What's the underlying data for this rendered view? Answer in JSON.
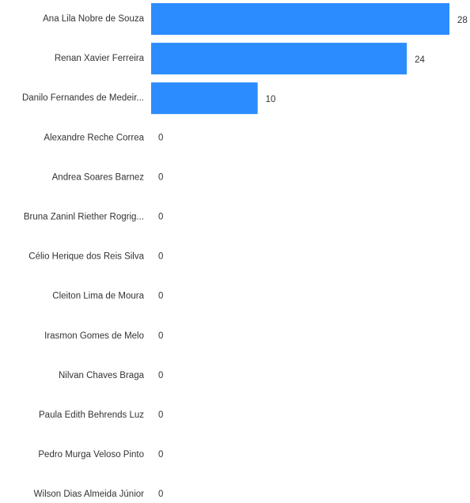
{
  "chart_data": {
    "type": "bar",
    "orientation": "horizontal",
    "categories": [
      "Ana Lila Nobre de Souza",
      "Renan Xavier Ferreira",
      "Danilo Fernandes de Medeir...",
      "Alexandre Reche Correa",
      "Andrea Soares Barnez",
      "Bruna Zaninl Riether Rogrig...",
      "Célio Herique dos Reis Silva",
      "Cleiton Lima de Moura",
      "Irasmon Gomes de Melo",
      "Nilvan Chaves Braga",
      "Paula Edith Behrends Luz",
      "Pedro Murga Veloso Pinto",
      "Wilson Dias Almeida Júnior"
    ],
    "values": [
      28,
      24,
      10,
      0,
      0,
      0,
      0,
      0,
      0,
      0,
      0,
      0,
      0
    ],
    "data_labels": [
      "28",
      "24",
      "10",
      "0",
      "0",
      "0",
      "0",
      "0",
      "0",
      "0",
      "0",
      "0",
      "0"
    ],
    "xlim": [
      0,
      28
    ],
    "grid": false,
    "legend": "none",
    "colors": {
      "bar": "#2b8cff",
      "category_text": "#333333",
      "value_text": "#333333"
    }
  }
}
